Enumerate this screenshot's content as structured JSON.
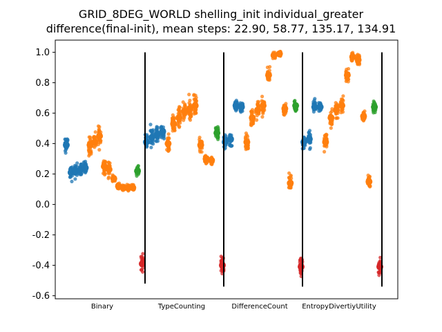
{
  "chart_data": {
    "type": "scatter",
    "title": "GRID_8DEG_WORLD shelling_init individual_greater",
    "subtitle": "difference(final-init), mean steps: 22.90, 58.77, 135.17, 134.91",
    "xlabel": "",
    "ylabel": "",
    "ylim": [
      -0.62,
      1.08
    ],
    "yticks": [
      "-0.6",
      "-0.4",
      "-0.2",
      "0.0",
      "0.2",
      "0.4",
      "0.6",
      "0.8",
      "1.0"
    ],
    "grid": false,
    "categories": [
      "Binary",
      "TypeCounting",
      "DifferenceCount",
      "EntropyDivertiyUtility"
    ],
    "colors": {
      "blue": "#1f77b4",
      "orange": "#ff7f0e",
      "green": "#2ca02c",
      "red": "#d62728",
      "separator": "#000000"
    },
    "groups": [
      {
        "category": "Binary",
        "clusters": [
          {
            "color": "blue",
            "mean": 0.39,
            "spread": 0.07
          },
          {
            "color": "blue",
            "mean": 0.21,
            "spread": 0.05
          },
          {
            "color": "blue",
            "mean": 0.22,
            "spread": 0.05
          },
          {
            "color": "blue",
            "mean": 0.23,
            "spread": 0.05
          },
          {
            "color": "blue",
            "mean": 0.24,
            "spread": 0.04
          },
          {
            "color": "orange",
            "mean": 0.39,
            "spread": 0.07
          },
          {
            "color": "orange",
            "mean": 0.41,
            "spread": 0.06
          },
          {
            "color": "orange",
            "mean": 0.45,
            "spread": 0.07
          },
          {
            "color": "orange",
            "mean": 0.25,
            "spread": 0.06
          },
          {
            "color": "orange",
            "mean": 0.23,
            "spread": 0.05
          },
          {
            "color": "orange",
            "mean": 0.17,
            "spread": 0.03
          },
          {
            "color": "orange",
            "mean": 0.12,
            "spread": 0.02
          },
          {
            "color": "orange",
            "mean": 0.11,
            "spread": 0.02
          },
          {
            "color": "orange",
            "mean": 0.11,
            "spread": 0.02
          },
          {
            "color": "orange",
            "mean": 0.11,
            "spread": 0.02
          },
          {
            "color": "green",
            "mean": 0.22,
            "spread": 0.04
          },
          {
            "color": "red",
            "mean": -0.39,
            "spread": 0.06
          }
        ],
        "separator": [
          1.0,
          -0.52
        ]
      },
      {
        "category": "TypeCounting",
        "clusters": [
          {
            "color": "blue",
            "mean": 0.41,
            "spread": 0.06
          },
          {
            "color": "blue",
            "mean": 0.44,
            "spread": 0.07
          },
          {
            "color": "blue",
            "mean": 0.46,
            "spread": 0.06
          },
          {
            "color": "blue",
            "mean": 0.48,
            "spread": 0.06
          },
          {
            "color": "orange",
            "mean": 0.4,
            "spread": 0.06
          },
          {
            "color": "orange",
            "mean": 0.53,
            "spread": 0.07
          },
          {
            "color": "orange",
            "mean": 0.57,
            "spread": 0.07
          },
          {
            "color": "orange",
            "mean": 0.61,
            "spread": 0.07
          },
          {
            "color": "orange",
            "mean": 0.63,
            "spread": 0.07
          },
          {
            "color": "orange",
            "mean": 0.65,
            "spread": 0.07
          },
          {
            "color": "orange",
            "mean": 0.39,
            "spread": 0.04
          },
          {
            "color": "orange",
            "mean": 0.3,
            "spread": 0.03
          },
          {
            "color": "orange",
            "mean": 0.29,
            "spread": 0.03
          },
          {
            "color": "green",
            "mean": 0.47,
            "spread": 0.05
          },
          {
            "color": "red",
            "mean": -0.4,
            "spread": 0.06
          }
        ],
        "separator": [
          1.0,
          -0.54
        ]
      },
      {
        "category": "DifferenceCount",
        "clusters": [
          {
            "color": "blue",
            "mean": 0.41,
            "spread": 0.06
          },
          {
            "color": "blue",
            "mean": 0.43,
            "spread": 0.06
          },
          {
            "color": "blue",
            "mean": 0.65,
            "spread": 0.04
          },
          {
            "color": "blue",
            "mean": 0.64,
            "spread": 0.04
          },
          {
            "color": "orange",
            "mean": 0.41,
            "spread": 0.06
          },
          {
            "color": "orange",
            "mean": 0.57,
            "spread": 0.06
          },
          {
            "color": "orange",
            "mean": 0.62,
            "spread": 0.06
          },
          {
            "color": "orange",
            "mean": 0.65,
            "spread": 0.06
          },
          {
            "color": "orange",
            "mean": 0.85,
            "spread": 0.05
          },
          {
            "color": "orange",
            "mean": 0.98,
            "spread": 0.02
          },
          {
            "color": "orange",
            "mean": 0.99,
            "spread": 0.02
          },
          {
            "color": "orange",
            "mean": 0.63,
            "spread": 0.04
          },
          {
            "color": "orange",
            "mean": 0.14,
            "spread": 0.05
          },
          {
            "color": "green",
            "mean": 0.65,
            "spread": 0.04
          },
          {
            "color": "red",
            "mean": -0.41,
            "spread": 0.07
          }
        ],
        "separator": [
          1.0,
          -0.54
        ]
      },
      {
        "category": "EntropyDivertiyUtility",
        "clusters": [
          {
            "color": "blue",
            "mean": 0.41,
            "spread": 0.06
          },
          {
            "color": "blue",
            "mean": 0.43,
            "spread": 0.06
          },
          {
            "color": "blue",
            "mean": 0.64,
            "spread": 0.04
          },
          {
            "color": "blue",
            "mean": 0.64,
            "spread": 0.04
          },
          {
            "color": "orange",
            "mean": 0.41,
            "spread": 0.06
          },
          {
            "color": "orange",
            "mean": 0.57,
            "spread": 0.06
          },
          {
            "color": "orange",
            "mean": 0.62,
            "spread": 0.06
          },
          {
            "color": "orange",
            "mean": 0.65,
            "spread": 0.06
          },
          {
            "color": "orange",
            "mean": 0.85,
            "spread": 0.05
          },
          {
            "color": "orange",
            "mean": 0.97,
            "spread": 0.03
          },
          {
            "color": "orange",
            "mean": 0.95,
            "spread": 0.04
          },
          {
            "color": "orange",
            "mean": 0.58,
            "spread": 0.05
          },
          {
            "color": "orange",
            "mean": 0.15,
            "spread": 0.05
          },
          {
            "color": "green",
            "mean": 0.64,
            "spread": 0.04
          },
          {
            "color": "red",
            "mean": -0.41,
            "spread": 0.07
          }
        ],
        "separator": [
          1.0,
          -0.54
        ]
      }
    ]
  }
}
